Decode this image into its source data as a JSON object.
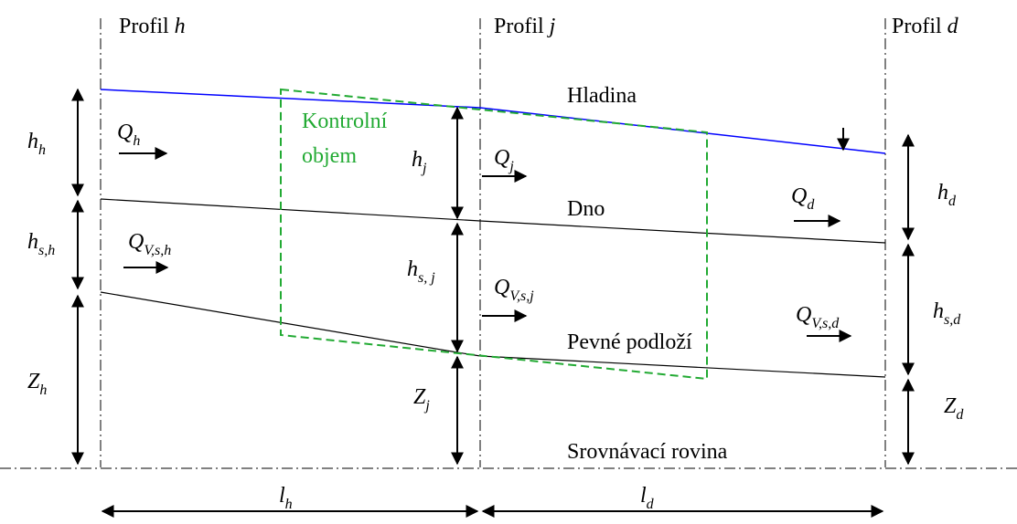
{
  "profiles": [
    {
      "prefix": "Profil",
      "name": "h"
    },
    {
      "prefix": "Profil",
      "name": "j"
    },
    {
      "prefix": "Profil",
      "name": "d"
    }
  ],
  "regions": {
    "control_volume": [
      "Kontrolní",
      "objem"
    ],
    "surface": "Hladina",
    "bed": "Dno",
    "bedrock": "Pevné podloží",
    "datum": "Srovnávací rovina"
  },
  "depths": [
    {
      "symbol": "h",
      "sub": "h"
    },
    {
      "symbol": "h",
      "sub": "s,h"
    },
    {
      "symbol": "Z",
      "sub": "h"
    },
    {
      "symbol": "h",
      "sub": "j"
    },
    {
      "symbol": "h",
      "sub": "s, j"
    },
    {
      "symbol": "Z",
      "sub": "j"
    },
    {
      "symbol": "h",
      "sub": "d"
    },
    {
      "symbol": "h",
      "sub": "s,d"
    },
    {
      "symbol": "Z",
      "sub": "d"
    }
  ],
  "flows": [
    {
      "symbol": "Q",
      "sub": "h"
    },
    {
      "symbol": "Q",
      "sub": "V,s,h"
    },
    {
      "symbol": "Q",
      "sub": "j"
    },
    {
      "symbol": "Q",
      "sub": "V,s,j"
    },
    {
      "symbol": "Q",
      "sub": "d"
    },
    {
      "symbol": "Q",
      "sub": "V,s,d"
    }
  ],
  "lengths": [
    {
      "symbol": "l",
      "sub": "h"
    },
    {
      "symbol": "l",
      "sub": "d"
    }
  ]
}
